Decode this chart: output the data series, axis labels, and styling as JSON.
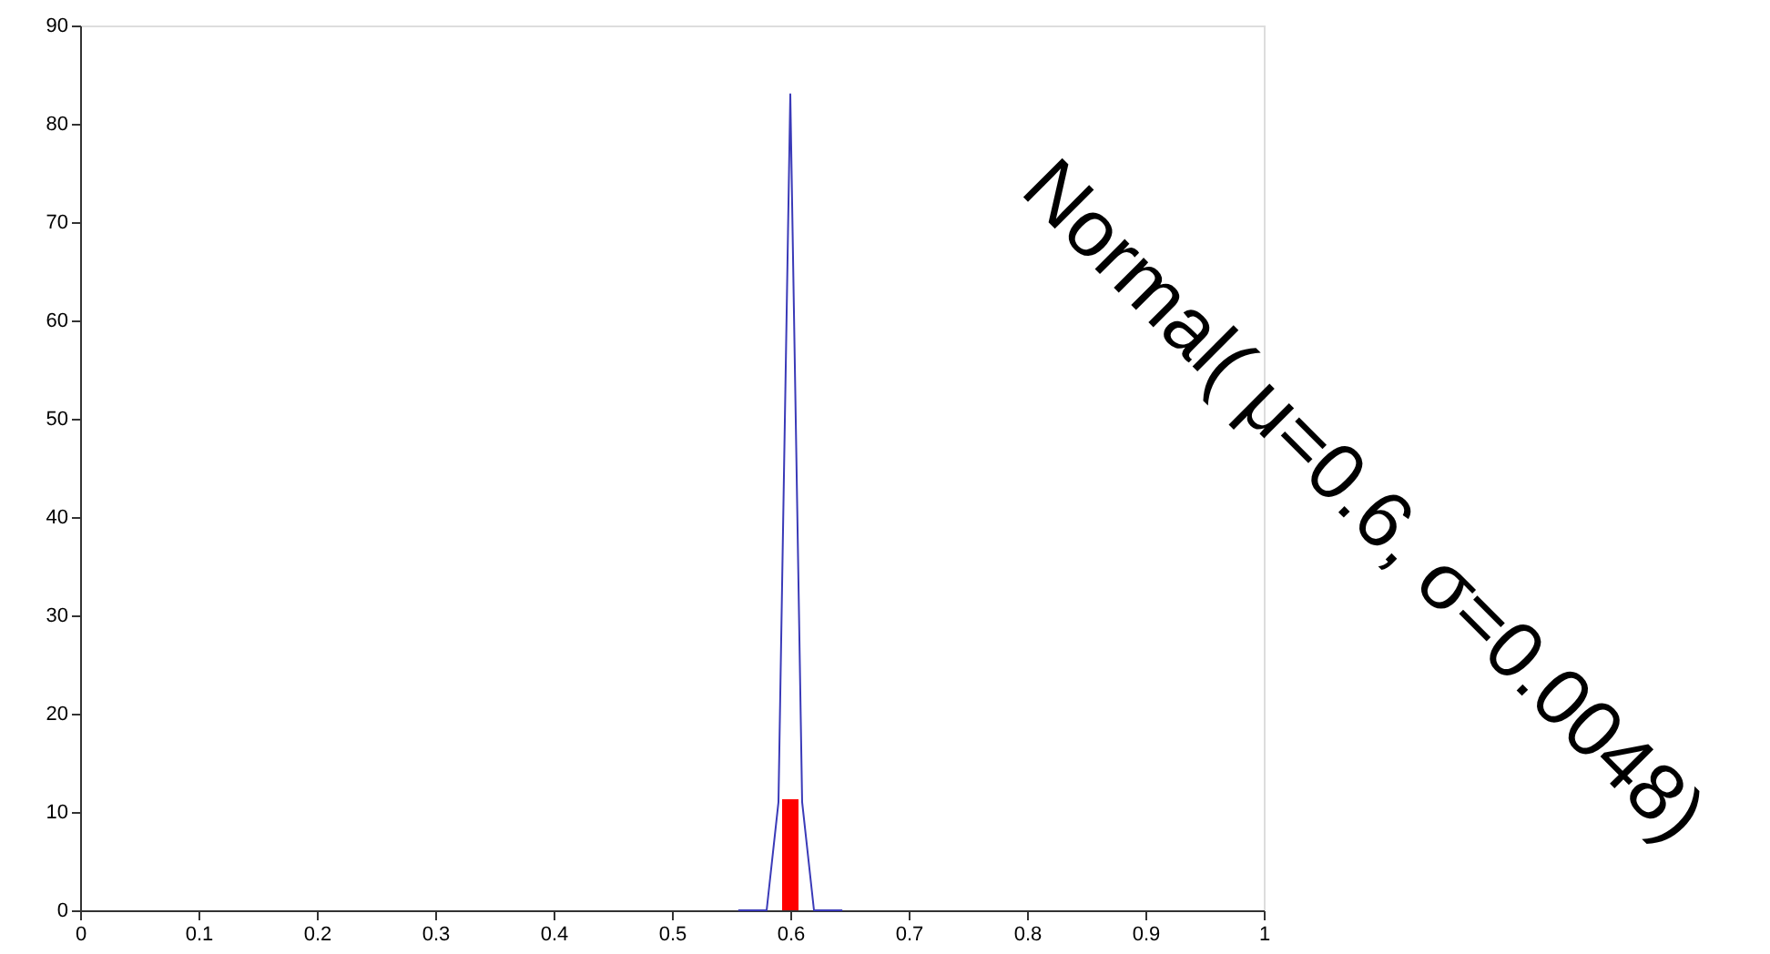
{
  "chart_data": {
    "type": "line",
    "xlim": [
      0,
      1
    ],
    "xticks": [
      0,
      0.1,
      0.2,
      0.3,
      0.4,
      0.5,
      0.6,
      0.7,
      0.8,
      0.9,
      1
    ],
    "ylim": [
      0,
      90
    ],
    "yticks": [
      0,
      10,
      20,
      30,
      40,
      50,
      60,
      70,
      80,
      90
    ],
    "grid": false,
    "annotations": [
      "Normal( μ=0.6, σ=0.0048)"
    ],
    "series": [
      {
        "color": "#3a3ab8",
        "x": [
          0.556,
          0.58,
          0.59,
          0.6,
          0.61,
          0.62,
          0.644
        ],
        "values": [
          0,
          0,
          11,
          83,
          11,
          0,
          0
        ]
      },
      {
        "type": "bar",
        "color": "#ff0000",
        "x": [
          0.6
        ],
        "values": [
          11.3
        ]
      }
    ]
  }
}
